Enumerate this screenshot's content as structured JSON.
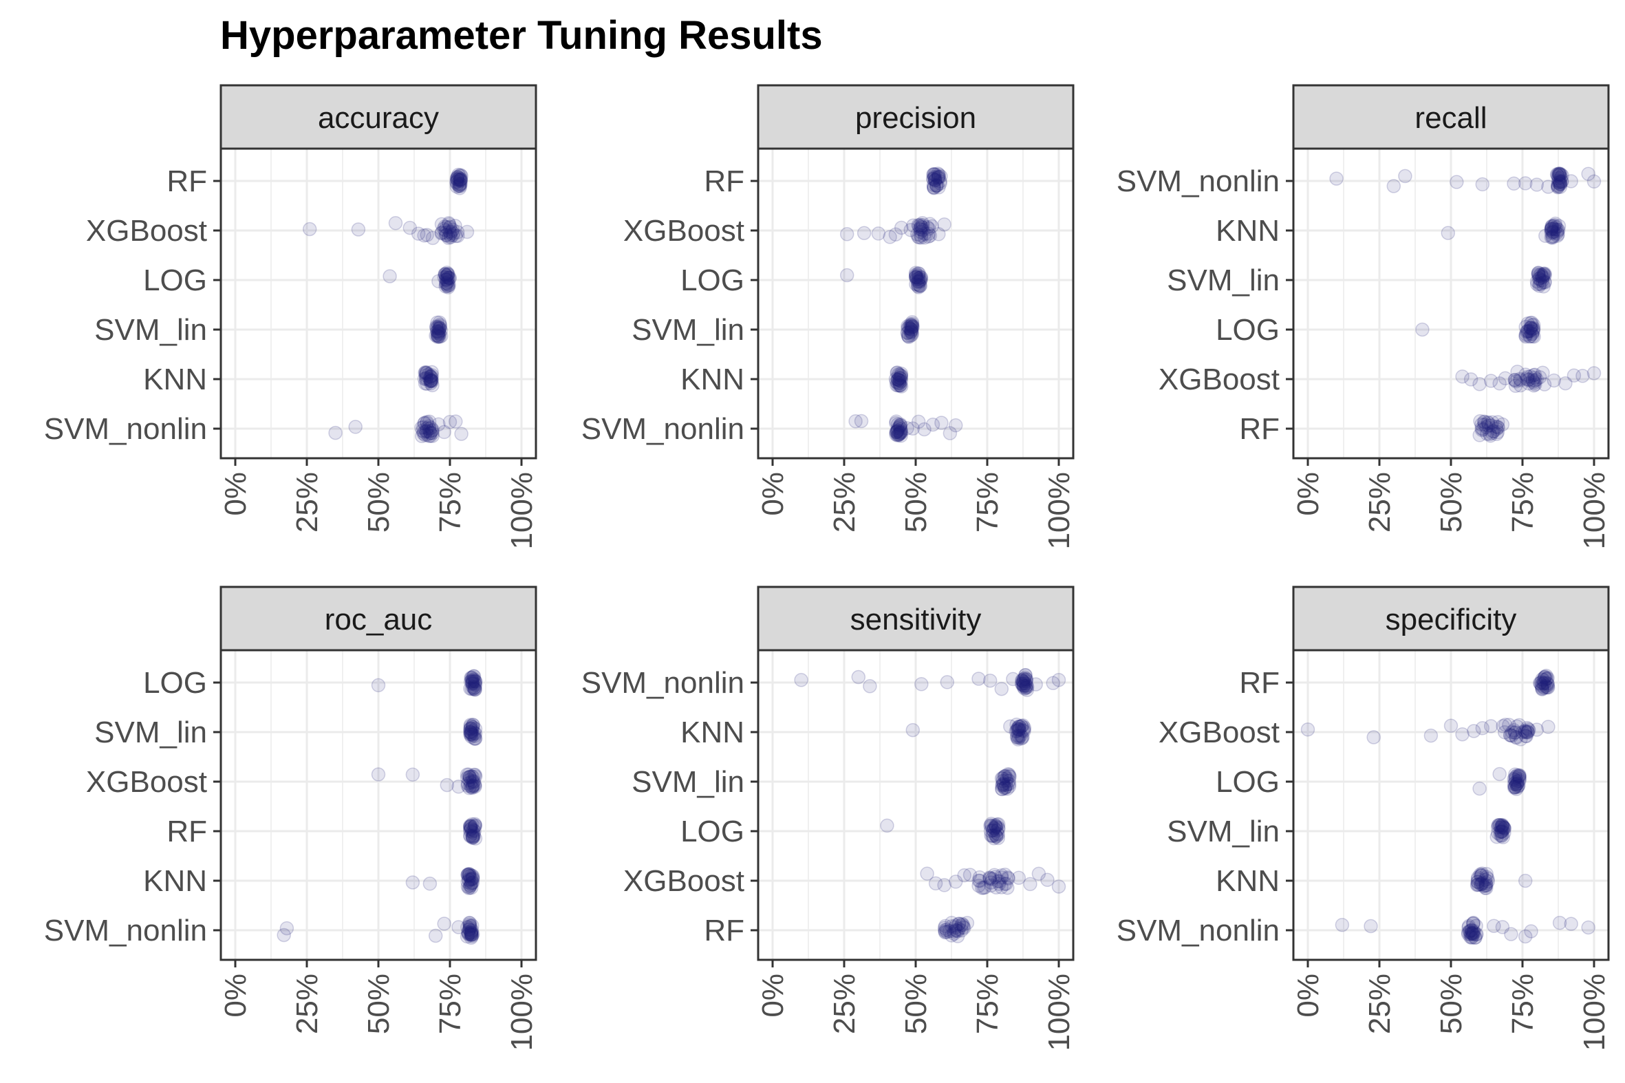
{
  "chart_data": {
    "type": "scatter",
    "title": "Hyperparameter Tuning Results",
    "xlabel": "",
    "ylabel": "",
    "xlim": [
      0,
      1
    ],
    "x_ticks": [
      {
        "value": 0,
        "label": "0%"
      },
      {
        "value": 0.25,
        "label": "25%"
      },
      {
        "value": 0.5,
        "label": "50%"
      },
      {
        "value": 0.75,
        "label": "75%"
      },
      {
        "value": 1.0,
        "label": "100%"
      }
    ],
    "point_color": "#1f1f7a",
    "point_alpha": 0.12,
    "strip_fill": "#d9d9d9",
    "grid_color": "#ebebeb",
    "panels": [
      {
        "metric": "accuracy",
        "categories": [
          "RF",
          "XGBoost",
          "LOG",
          "SVM_lin",
          "KNN",
          "SVM_nonlin"
        ],
        "clusters": {
          "RF": {
            "main": [
              0.77,
              0.79
            ],
            "outliers": []
          },
          "XGBoost": {
            "main": [
              0.72,
              0.78
            ],
            "outliers": [
              0.26,
              0.43,
              0.56,
              0.61,
              0.64,
              0.66,
              0.67,
              0.69,
              0.81
            ]
          },
          "LOG": {
            "main": [
              0.73,
              0.75
            ],
            "outliers": [
              0.54,
              0.71
            ]
          },
          "SVM_lin": {
            "main": [
              0.7,
              0.72
            ],
            "outliers": []
          },
          "KNN": {
            "main": [
              0.66,
              0.69
            ],
            "outliers": []
          },
          "SVM_nonlin": {
            "main": [
              0.65,
              0.69
            ],
            "outliers": [
              0.35,
              0.42,
              0.71,
              0.73,
              0.75,
              0.77,
              0.79
            ]
          }
        }
      },
      {
        "metric": "precision",
        "categories": [
          "RF",
          "XGBoost",
          "LOG",
          "SVM_lin",
          "KNN",
          "SVM_nonlin"
        ],
        "clusters": {
          "RF": {
            "main": [
              0.56,
              0.59
            ],
            "outliers": []
          },
          "XGBoost": {
            "main": [
              0.48,
              0.56
            ],
            "outliers": [
              0.26,
              0.32,
              0.37,
              0.41,
              0.43,
              0.45,
              0.58,
              0.6
            ]
          },
          "LOG": {
            "main": [
              0.5,
              0.52
            ],
            "outliers": [
              0.26
            ]
          },
          "SVM_lin": {
            "main": [
              0.47,
              0.49
            ],
            "outliers": []
          },
          "KNN": {
            "main": [
              0.43,
              0.45
            ],
            "outliers": []
          },
          "SVM_nonlin": {
            "main": [
              0.43,
              0.45
            ],
            "outliers": [
              0.29,
              0.31,
              0.47,
              0.49,
              0.51,
              0.53,
              0.56,
              0.59,
              0.62,
              0.64
            ]
          }
        }
      },
      {
        "metric": "recall",
        "categories": [
          "SVM_nonlin",
          "KNN",
          "SVM_lin",
          "LOG",
          "XGBoost",
          "RF"
        ],
        "clusters": {
          "SVM_nonlin": {
            "main": [
              0.87,
              0.89
            ],
            "outliers": [
              0.1,
              0.3,
              0.34,
              0.52,
              0.61,
              0.72,
              0.76,
              0.8,
              0.84,
              0.92,
              0.98,
              1.0
            ]
          },
          "KNN": {
            "main": [
              0.85,
              0.88
            ],
            "outliers": [
              0.49,
              0.83
            ]
          },
          "SVM_lin": {
            "main": [
              0.8,
              0.83
            ],
            "outliers": []
          },
          "LOG": {
            "main": [
              0.76,
              0.79
            ],
            "outliers": [
              0.4
            ]
          },
          "XGBoost": {
            "main": [
              0.72,
              0.83
            ],
            "outliers": [
              0.54,
              0.57,
              0.6,
              0.64,
              0.67,
              0.69,
              0.86,
              0.9,
              0.93,
              0.96,
              1.0
            ]
          },
          "RF": {
            "main": [
              0.6,
              0.67
            ],
            "outliers": [
              0.68
            ]
          }
        }
      },
      {
        "metric": "roc_auc",
        "categories": [
          "LOG",
          "SVM_lin",
          "XGBoost",
          "RF",
          "KNN",
          "SVM_nonlin"
        ],
        "clusters": {
          "LOG": {
            "main": [
              0.82,
              0.84
            ],
            "outliers": [
              0.5
            ]
          },
          "SVM_lin": {
            "main": [
              0.82,
              0.84
            ],
            "outliers": []
          },
          "XGBoost": {
            "main": [
              0.81,
              0.84
            ],
            "outliers": [
              0.5,
              0.62,
              0.74,
              0.78
            ]
          },
          "RF": {
            "main": [
              0.82,
              0.84
            ],
            "outliers": []
          },
          "KNN": {
            "main": [
              0.81,
              0.83
            ],
            "outliers": [
              0.62,
              0.68
            ]
          },
          "SVM_nonlin": {
            "main": [
              0.81,
              0.83
            ],
            "outliers": [
              0.17,
              0.18,
              0.7,
              0.73,
              0.78
            ]
          }
        }
      },
      {
        "metric": "sensitivity",
        "categories": [
          "SVM_nonlin",
          "KNN",
          "SVM_lin",
          "LOG",
          "XGBoost",
          "RF"
        ],
        "clusters": {
          "SVM_nonlin": {
            "main": [
              0.87,
              0.89
            ],
            "outliers": [
              0.1,
              0.3,
              0.34,
              0.52,
              0.61,
              0.72,
              0.76,
              0.8,
              0.84,
              0.92,
              0.98,
              1.0
            ]
          },
          "KNN": {
            "main": [
              0.85,
              0.88
            ],
            "outliers": [
              0.49,
              0.83
            ]
          },
          "SVM_lin": {
            "main": [
              0.8,
              0.83
            ],
            "outliers": []
          },
          "LOG": {
            "main": [
              0.76,
              0.79
            ],
            "outliers": [
              0.4
            ]
          },
          "XGBoost": {
            "main": [
              0.72,
              0.83
            ],
            "outliers": [
              0.54,
              0.57,
              0.6,
              0.64,
              0.67,
              0.69,
              0.86,
              0.9,
              0.93,
              0.96,
              1.0
            ]
          },
          "RF": {
            "main": [
              0.6,
              0.67
            ],
            "outliers": [
              0.68
            ]
          }
        }
      },
      {
        "metric": "specificity",
        "categories": [
          "RF",
          "XGBoost",
          "LOG",
          "SVM_lin",
          "KNN",
          "SVM_nonlin"
        ],
        "clusters": {
          "RF": {
            "main": [
              0.81,
              0.84
            ],
            "outliers": []
          },
          "XGBoost": {
            "main": [
              0.68,
              0.78
            ],
            "outliers": [
              0.0,
              0.23,
              0.43,
              0.5,
              0.54,
              0.58,
              0.61,
              0.64,
              0.8,
              0.84
            ]
          },
          "LOG": {
            "main": [
              0.72,
              0.74
            ],
            "outliers": [
              0.6,
              0.67
            ]
          },
          "SVM_lin": {
            "main": [
              0.66,
              0.69
            ],
            "outliers": []
          },
          "KNN": {
            "main": [
              0.59,
              0.63
            ],
            "outliers": [
              0.76
            ]
          },
          "SVM_nonlin": {
            "main": [
              0.56,
              0.59
            ],
            "outliers": [
              0.12,
              0.22,
              0.65,
              0.68,
              0.71,
              0.76,
              0.78,
              0.88,
              0.92,
              0.98
            ]
          }
        }
      }
    ]
  }
}
